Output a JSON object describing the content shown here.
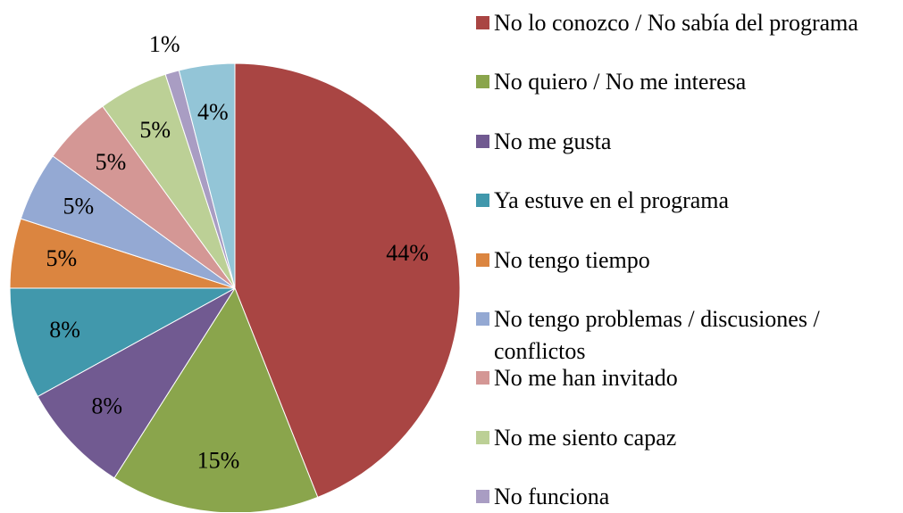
{
  "chart_data": {
    "type": "pie",
    "categories": [
      "No lo conozco / No sabía del programa",
      "No quiero / No me interesa",
      "No me gusta",
      "Ya estuve en el programa",
      "No tengo tiempo",
      "No tengo problemas / discusiones / conflictos",
      "No me han invitado",
      "No me siento capaz",
      "No funciona",
      null
    ],
    "values": [
      44,
      15,
      8,
      8,
      5,
      5,
      5,
      5,
      1,
      4
    ],
    "value_labels": [
      "44%",
      "15%",
      "8%",
      "8%",
      "5%",
      "5%",
      "5%",
      "5%",
      "1%",
      "4%"
    ],
    "colors": [
      "#a94543",
      "#8aa54c",
      "#715a91",
      "#4198ac",
      "#db8540",
      "#94a9d3",
      "#d49795",
      "#bcd096",
      "#a99dc3",
      "#93c5d7"
    ],
    "legend": "right"
  }
}
